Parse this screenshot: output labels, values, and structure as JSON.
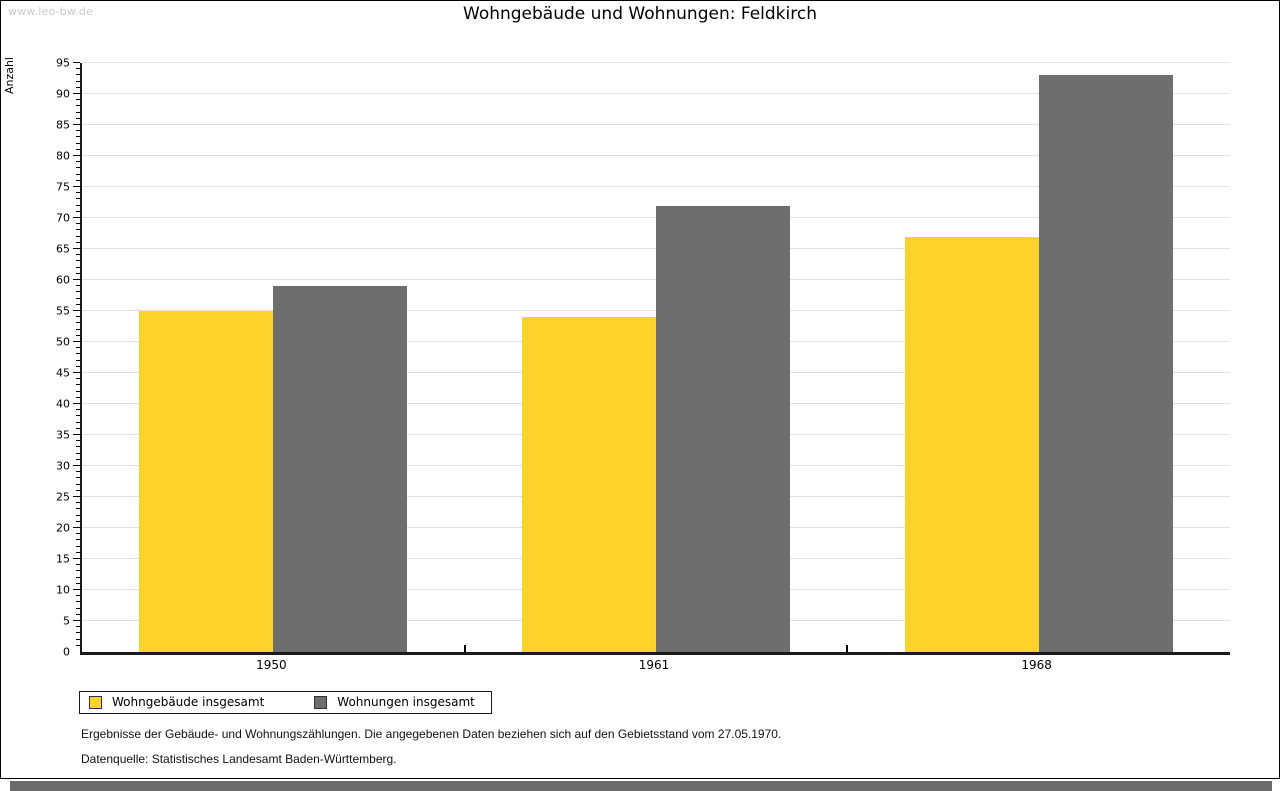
{
  "watermark": "www.leo-bw.de",
  "chart_data": {
    "type": "bar",
    "title": "Wohngebäude und Wohnungen: Feldkirch",
    "categories": [
      "1950",
      "1961",
      "1968"
    ],
    "series": [
      {
        "name": "Wohngebäude insgesamt",
        "color": "#fdd32b",
        "values": [
          55,
          54,
          67
        ]
      },
      {
        "name": "Wohnungen insgesamt",
        "color": "#6e6e6e",
        "values": [
          59,
          72,
          93
        ]
      }
    ],
    "xlabel": "",
    "ylabel": "Anzahl",
    "ylim": [
      0,
      95
    ],
    "ytick_step": 5,
    "minor_tick_step": 1,
    "grid": true,
    "legend_position": "bottom-left"
  },
  "colors": {
    "series_1": "#fdd32b",
    "series_2": "#6e6e6e",
    "gridline": "#e2e2e2",
    "axis": "#1b1b1b",
    "watermark": "#c9c9c9",
    "bottom_shadow": "#6b6b6b"
  },
  "footnotes": [
    "Ergebnisse der Gebäude- und Wohnungszählungen. Die angegebenen Daten beziehen sich auf den Gebietsstand vom 27.05.1970.",
    "Datenquelle: Statistisches Landesamt Baden-Württemberg."
  ]
}
